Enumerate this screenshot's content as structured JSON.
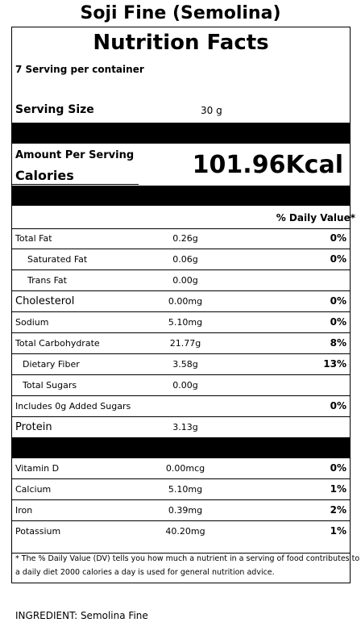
{
  "header": {
    "title": "Soji Fine (Semolina)",
    "label_title": "Nutrition Facts",
    "servings": "7 Serving per container",
    "serving_size_label": "Serving Size",
    "serving_size": "30 g"
  },
  "calories": {
    "amount_label": "Amount Per Serving",
    "label": "Calories",
    "value": "101.96Kcal"
  },
  "dv_header": "% Daily Value*",
  "nutrients": [
    {
      "name": "Total Fat",
      "amount": "0.26g",
      "dv": "0%"
    },
    {
      "name": "Saturated Fat",
      "amount": "0.06g",
      "dv": "0%"
    },
    {
      "name": "Trans Fat",
      "amount": "0.00g"
    },
    {
      "name": "Cholesterol",
      "amount": "0.00mg",
      "dv": "0%"
    },
    {
      "name": "Sodium",
      "amount": "5.10mg",
      "dv": "0%"
    },
    {
      "name": "Total Carbohydrate",
      "amount": "21.77g",
      "dv": "8%"
    },
    {
      "name": "Dietary Fiber",
      "amount": "3.58g",
      "dv": "13%"
    },
    {
      "name": "Total Sugars",
      "amount": "0.00g"
    },
    {
      "name": "Includes  0g Added Sugars",
      "dv": "0%"
    },
    {
      "name": "Protein",
      "amount": "3.13g"
    }
  ],
  "vitamins": [
    {
      "name": "Vitamin D",
      "amount": "0.00mcg",
      "dv": "0%"
    },
    {
      "name": "Calcium",
      "amount": "5.10mg",
      "dv": "1%"
    },
    {
      "name": "Iron",
      "amount": "0.39mg",
      "dv": "2%"
    },
    {
      "name": "Potassium",
      "amount": "40.20mg",
      "dv": "1%"
    }
  ],
  "footnote": [
    "* The % Daily Value (DV) tells you how much a nutrient in a serving of food contributes to",
    "a daily diet 2000 calories a day is used for general nutrition advice."
  ],
  "ingredient": "INGREDIENT: Semolina Fine"
}
